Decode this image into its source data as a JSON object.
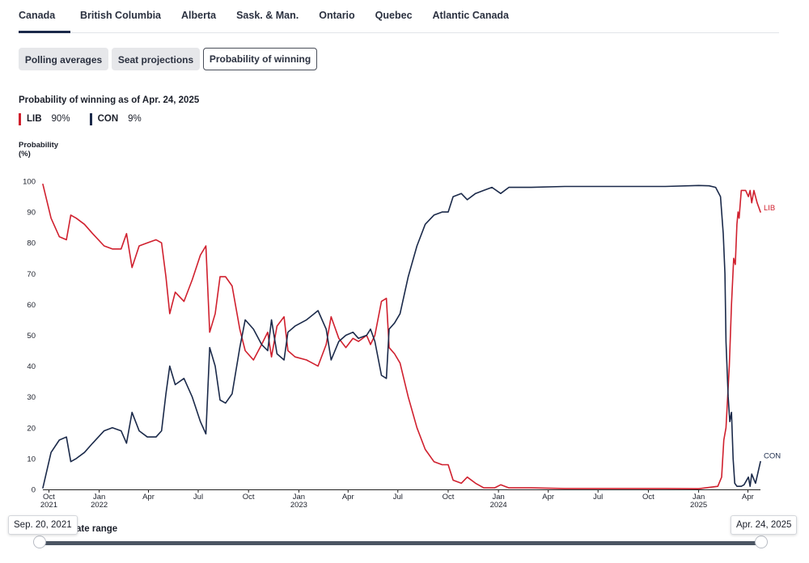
{
  "region_tabs": [
    "Canada",
    "British Columbia",
    "Alberta",
    "Sask. & Man.",
    "Ontario",
    "Quebec",
    "Atlantic Canada"
  ],
  "view_buttons": [
    "Polling averages",
    "Seat projections",
    "Probability of winning"
  ],
  "colors": {
    "lib": "#d0202e",
    "con": "#1b2a4a"
  },
  "date_range": {
    "label": "date range",
    "start": "Sep. 20, 2021",
    "end": "Apr. 24, 2025"
  },
  "chart_data": {
    "type": "line",
    "title": "Probability of winning as of Apr. 24, 2025",
    "ylabel": "Probability\n(%)",
    "xlabel": "",
    "ylim": [
      0,
      100
    ],
    "yticks": [
      0,
      10,
      20,
      30,
      40,
      50,
      60,
      70,
      80,
      90,
      100
    ],
    "xlim": [
      "2021-09-20",
      "2025-04-24"
    ],
    "x_ticks": [
      {
        "date": "2021-10-01",
        "label": "Oct",
        "year": "2021"
      },
      {
        "date": "2022-01-01",
        "label": "Jan",
        "year": "2022"
      },
      {
        "date": "2022-04-01",
        "label": "Apr"
      },
      {
        "date": "2022-07-01",
        "label": "Jul"
      },
      {
        "date": "2022-10-01",
        "label": "Oct"
      },
      {
        "date": "2023-01-01",
        "label": "Jan",
        "year": "2023"
      },
      {
        "date": "2023-04-01",
        "label": "Apr"
      },
      {
        "date": "2023-07-01",
        "label": "Jul"
      },
      {
        "date": "2023-10-01",
        "label": "Oct"
      },
      {
        "date": "2024-01-01",
        "label": "Jan",
        "year": "2024"
      },
      {
        "date": "2024-04-01",
        "label": "Apr"
      },
      {
        "date": "2024-07-01",
        "label": "Jul"
      },
      {
        "date": "2024-10-01",
        "label": "Oct"
      },
      {
        "date": "2025-01-01",
        "label": "Jan",
        "year": "2025"
      },
      {
        "date": "2025-04-01",
        "label": "Apr"
      }
    ],
    "grid": false,
    "legend_position": "top-left",
    "series": [
      {
        "name": "LIB",
        "key": "lib",
        "latest": "90%",
        "end_label": "LIB",
        "points": [
          [
            "2021-09-20",
            99
          ],
          [
            "2021-10-05",
            88
          ],
          [
            "2021-10-20",
            82
          ],
          [
            "2021-11-02",
            81
          ],
          [
            "2021-11-10",
            89
          ],
          [
            "2021-11-20",
            88
          ],
          [
            "2021-12-05",
            86
          ],
          [
            "2021-12-20",
            83
          ],
          [
            "2022-01-10",
            79
          ],
          [
            "2022-01-25",
            78
          ],
          [
            "2022-02-10",
            78
          ],
          [
            "2022-02-20",
            83
          ],
          [
            "2022-03-02",
            72
          ],
          [
            "2022-03-15",
            79
          ],
          [
            "2022-03-30",
            80
          ],
          [
            "2022-04-15",
            81
          ],
          [
            "2022-04-25",
            80
          ],
          [
            "2022-05-03",
            69
          ],
          [
            "2022-05-10",
            57
          ],
          [
            "2022-05-20",
            64
          ],
          [
            "2022-06-05",
            61
          ],
          [
            "2022-06-20",
            68
          ],
          [
            "2022-07-05",
            76
          ],
          [
            "2022-07-15",
            79
          ],
          [
            "2022-07-22",
            51
          ],
          [
            "2022-08-01",
            57
          ],
          [
            "2022-08-10",
            69
          ],
          [
            "2022-08-20",
            69
          ],
          [
            "2022-09-01",
            66
          ],
          [
            "2022-09-15",
            52
          ],
          [
            "2022-09-25",
            45
          ],
          [
            "2022-10-10",
            42
          ],
          [
            "2022-10-25",
            47
          ],
          [
            "2022-11-05",
            51
          ],
          [
            "2022-11-12",
            43
          ],
          [
            "2022-11-22",
            53
          ],
          [
            "2022-12-05",
            56
          ],
          [
            "2022-12-12",
            45
          ],
          [
            "2022-12-25",
            43
          ],
          [
            "2023-01-15",
            42
          ],
          [
            "2023-02-05",
            40
          ],
          [
            "2023-02-20",
            47
          ],
          [
            "2023-03-01",
            56
          ],
          [
            "2023-03-15",
            49
          ],
          [
            "2023-03-28",
            46
          ],
          [
            "2023-04-10",
            49
          ],
          [
            "2023-04-20",
            48
          ],
          [
            "2023-05-05",
            50
          ],
          [
            "2023-05-12",
            47
          ],
          [
            "2023-05-20",
            50
          ],
          [
            "2023-06-01",
            61
          ],
          [
            "2023-06-10",
            62
          ],
          [
            "2023-06-15",
            46
          ],
          [
            "2023-06-25",
            44
          ],
          [
            "2023-07-05",
            41
          ],
          [
            "2023-07-20",
            30
          ],
          [
            "2023-08-05",
            20
          ],
          [
            "2023-08-20",
            13
          ],
          [
            "2023-09-05",
            9
          ],
          [
            "2023-09-20",
            8
          ],
          [
            "2023-10-01",
            8
          ],
          [
            "2023-10-10",
            3
          ],
          [
            "2023-10-25",
            2
          ],
          [
            "2023-11-05",
            4
          ],
          [
            "2023-11-20",
            2
          ],
          [
            "2023-12-05",
            0.5
          ],
          [
            "2023-12-25",
            0.5
          ],
          [
            "2024-01-05",
            1.5
          ],
          [
            "2024-01-20",
            0.5
          ],
          [
            "2024-03-01",
            0.5
          ],
          [
            "2024-05-01",
            0.3
          ],
          [
            "2024-07-01",
            0.3
          ],
          [
            "2024-09-01",
            0.3
          ],
          [
            "2024-11-01",
            0.3
          ],
          [
            "2025-01-01",
            0.2
          ],
          [
            "2025-02-05",
            1
          ],
          [
            "2025-02-12",
            4
          ],
          [
            "2025-02-16",
            16
          ],
          [
            "2025-02-20",
            20
          ],
          [
            "2025-02-26",
            40
          ],
          [
            "2025-03-02",
            60
          ],
          [
            "2025-03-06",
            75
          ],
          [
            "2025-03-09",
            73
          ],
          [
            "2025-03-12",
            86
          ],
          [
            "2025-03-14",
            90
          ],
          [
            "2025-03-16",
            88
          ],
          [
            "2025-03-20",
            97
          ],
          [
            "2025-03-28",
            97
          ],
          [
            "2025-04-02",
            95
          ],
          [
            "2025-04-05",
            97
          ],
          [
            "2025-04-08",
            93
          ],
          [
            "2025-04-12",
            97
          ],
          [
            "2025-04-18",
            93
          ],
          [
            "2025-04-24",
            90
          ]
        ]
      },
      {
        "name": "CON",
        "key": "con",
        "latest": "9%",
        "end_label": "CON",
        "points": [
          [
            "2021-09-20",
            0.5
          ],
          [
            "2021-10-05",
            12
          ],
          [
            "2021-10-20",
            16
          ],
          [
            "2021-11-02",
            17
          ],
          [
            "2021-11-10",
            9
          ],
          [
            "2021-11-20",
            10
          ],
          [
            "2021-12-05",
            12
          ],
          [
            "2021-12-20",
            15
          ],
          [
            "2022-01-10",
            19
          ],
          [
            "2022-01-25",
            20
          ],
          [
            "2022-02-10",
            19
          ],
          [
            "2022-02-20",
            15
          ],
          [
            "2022-03-02",
            25
          ],
          [
            "2022-03-15",
            19
          ],
          [
            "2022-03-30",
            17
          ],
          [
            "2022-04-15",
            17
          ],
          [
            "2022-04-25",
            19
          ],
          [
            "2022-05-03",
            31
          ],
          [
            "2022-05-10",
            40
          ],
          [
            "2022-05-20",
            34
          ],
          [
            "2022-06-05",
            36
          ],
          [
            "2022-06-20",
            30
          ],
          [
            "2022-07-05",
            22
          ],
          [
            "2022-07-15",
            18
          ],
          [
            "2022-07-22",
            46
          ],
          [
            "2022-08-01",
            40
          ],
          [
            "2022-08-10",
            29
          ],
          [
            "2022-08-20",
            28
          ],
          [
            "2022-09-01",
            31
          ],
          [
            "2022-09-15",
            46
          ],
          [
            "2022-09-25",
            55
          ],
          [
            "2022-10-10",
            52
          ],
          [
            "2022-10-25",
            47
          ],
          [
            "2022-11-05",
            45
          ],
          [
            "2022-11-12",
            55
          ],
          [
            "2022-11-22",
            44
          ],
          [
            "2022-12-05",
            42
          ],
          [
            "2022-12-12",
            51
          ],
          [
            "2022-12-25",
            53
          ],
          [
            "2023-01-15",
            55
          ],
          [
            "2023-02-05",
            58
          ],
          [
            "2023-02-20",
            52
          ],
          [
            "2023-03-01",
            42
          ],
          [
            "2023-03-15",
            48
          ],
          [
            "2023-03-28",
            50
          ],
          [
            "2023-04-10",
            51
          ],
          [
            "2023-04-20",
            49
          ],
          [
            "2023-05-05",
            50
          ],
          [
            "2023-05-12",
            52
          ],
          [
            "2023-05-20",
            48
          ],
          [
            "2023-06-01",
            37
          ],
          [
            "2023-06-10",
            36
          ],
          [
            "2023-06-15",
            52
          ],
          [
            "2023-06-25",
            54
          ],
          [
            "2023-07-05",
            57
          ],
          [
            "2023-07-20",
            69
          ],
          [
            "2023-08-05",
            79
          ],
          [
            "2023-08-20",
            86
          ],
          [
            "2023-09-05",
            89
          ],
          [
            "2023-09-20",
            90
          ],
          [
            "2023-10-01",
            90
          ],
          [
            "2023-10-10",
            95
          ],
          [
            "2023-10-25",
            96
          ],
          [
            "2023-11-05",
            94
          ],
          [
            "2023-11-20",
            96
          ],
          [
            "2023-12-05",
            97
          ],
          [
            "2023-12-20",
            98
          ],
          [
            "2024-01-05",
            96
          ],
          [
            "2024-01-20",
            98
          ],
          [
            "2024-03-01",
            98
          ],
          [
            "2024-05-01",
            98.3
          ],
          [
            "2024-07-01",
            98.3
          ],
          [
            "2024-09-01",
            98.3
          ],
          [
            "2024-11-01",
            98.3
          ],
          [
            "2025-01-01",
            98.6
          ],
          [
            "2025-01-20",
            98.5
          ],
          [
            "2025-02-01",
            98
          ],
          [
            "2025-02-10",
            95
          ],
          [
            "2025-02-15",
            83
          ],
          [
            "2025-02-18",
            70
          ],
          [
            "2025-02-20",
            48
          ],
          [
            "2025-02-24",
            30
          ],
          [
            "2025-02-27",
            22
          ],
          [
            "2025-03-02",
            25
          ],
          [
            "2025-03-05",
            10
          ],
          [
            "2025-03-08",
            2
          ],
          [
            "2025-03-12",
            1
          ],
          [
            "2025-03-20",
            1
          ],
          [
            "2025-03-25",
            1.5
          ],
          [
            "2025-04-02",
            4
          ],
          [
            "2025-04-05",
            1
          ],
          [
            "2025-04-08",
            5
          ],
          [
            "2025-04-15",
            2
          ],
          [
            "2025-04-24",
            9
          ]
        ]
      }
    ]
  }
}
